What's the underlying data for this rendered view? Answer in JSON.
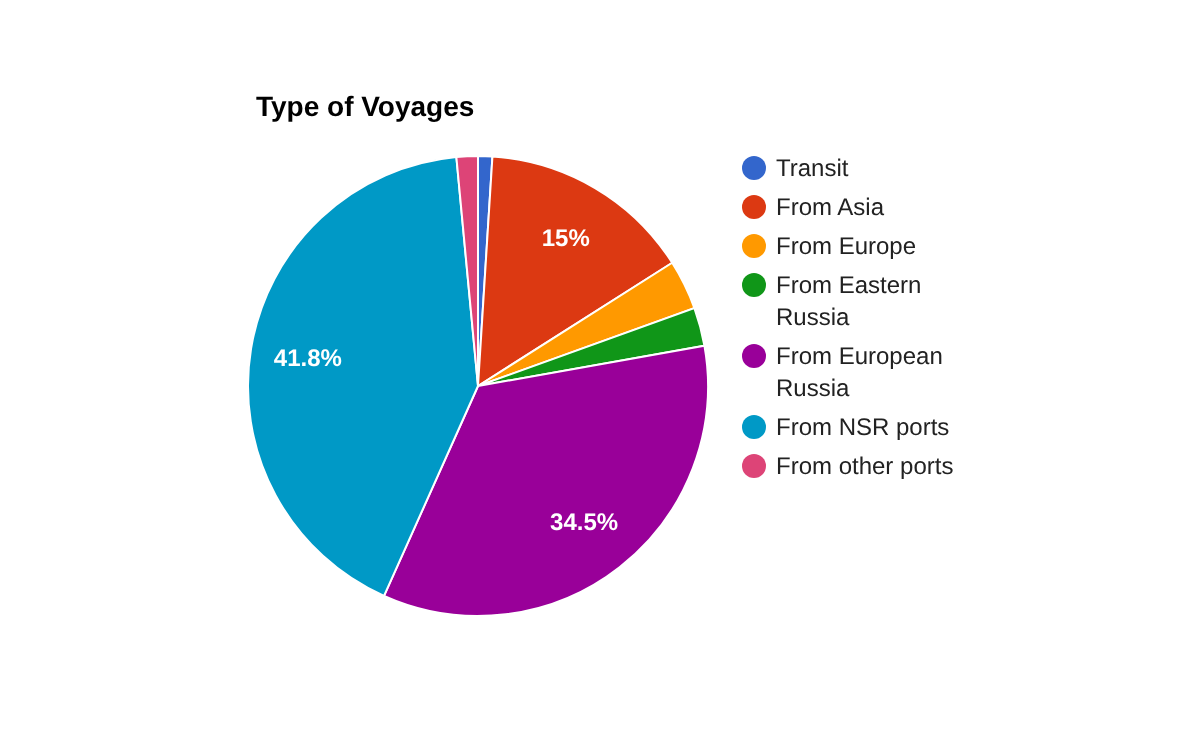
{
  "chart_data": {
    "type": "pie",
    "title": "Type of Voyages",
    "categories": [
      "Transit",
      "From Asia",
      "From Europe",
      "From Eastern Russia",
      "From European Russia",
      "From NSR ports",
      "From other ports"
    ],
    "values": [
      1,
      15,
      3.5,
      2.7,
      34.5,
      41.8,
      1.5
    ],
    "colors": [
      "#3366cc",
      "#dc3912",
      "#ff9900",
      "#109618",
      "#990099",
      "#0099c6",
      "#dd4477"
    ],
    "value_labels": [
      null,
      "15%",
      null,
      null,
      "34.5%",
      "41.8%",
      null
    ],
    "legend": "right"
  }
}
